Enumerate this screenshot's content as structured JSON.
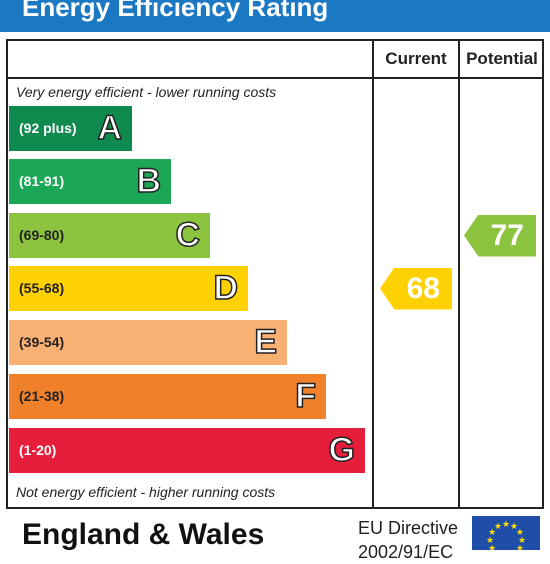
{
  "title": "Energy Efficiency Rating",
  "columns": {
    "current": "Current",
    "potential": "Potential"
  },
  "top_caption": "Very energy efficient - lower running costs",
  "bottom_caption": "Not energy efficient - higher running costs",
  "bands": [
    {
      "range": "(92 plus)",
      "letter": "A",
      "color": "#0f8a4f",
      "text_color": "#ffffff"
    },
    {
      "range": "(81-91)",
      "letter": "B",
      "color": "#1ba756",
      "text_color": "#ffffff"
    },
    {
      "range": "(69-80)",
      "letter": "C",
      "color": "#8cc43f",
      "text_color": "#222222"
    },
    {
      "range": "(55-68)",
      "letter": "D",
      "color": "#fed202",
      "text_color": "#222222"
    },
    {
      "range": "(39-54)",
      "letter": "E",
      "color": "#f9b073",
      "text_color": "#222222"
    },
    {
      "range": "(21-38)",
      "letter": "F",
      "color": "#f1802b",
      "text_color": "#222222"
    },
    {
      "range": "(1-20)",
      "letter": "G",
      "color": "#e41e3b",
      "text_color": "#ffffff"
    }
  ],
  "current_rating": {
    "value": "68",
    "band": "D",
    "color": "#fed202"
  },
  "potential_rating": {
    "value": "77",
    "band": "C",
    "color": "#8cc43f"
  },
  "footer": {
    "country": "England & Wales",
    "directive_line1": "EU Directive",
    "directive_line2": "2002/91/EC",
    "flag_color": "#1f4ea8",
    "star_color": "#ffdd00"
  }
}
